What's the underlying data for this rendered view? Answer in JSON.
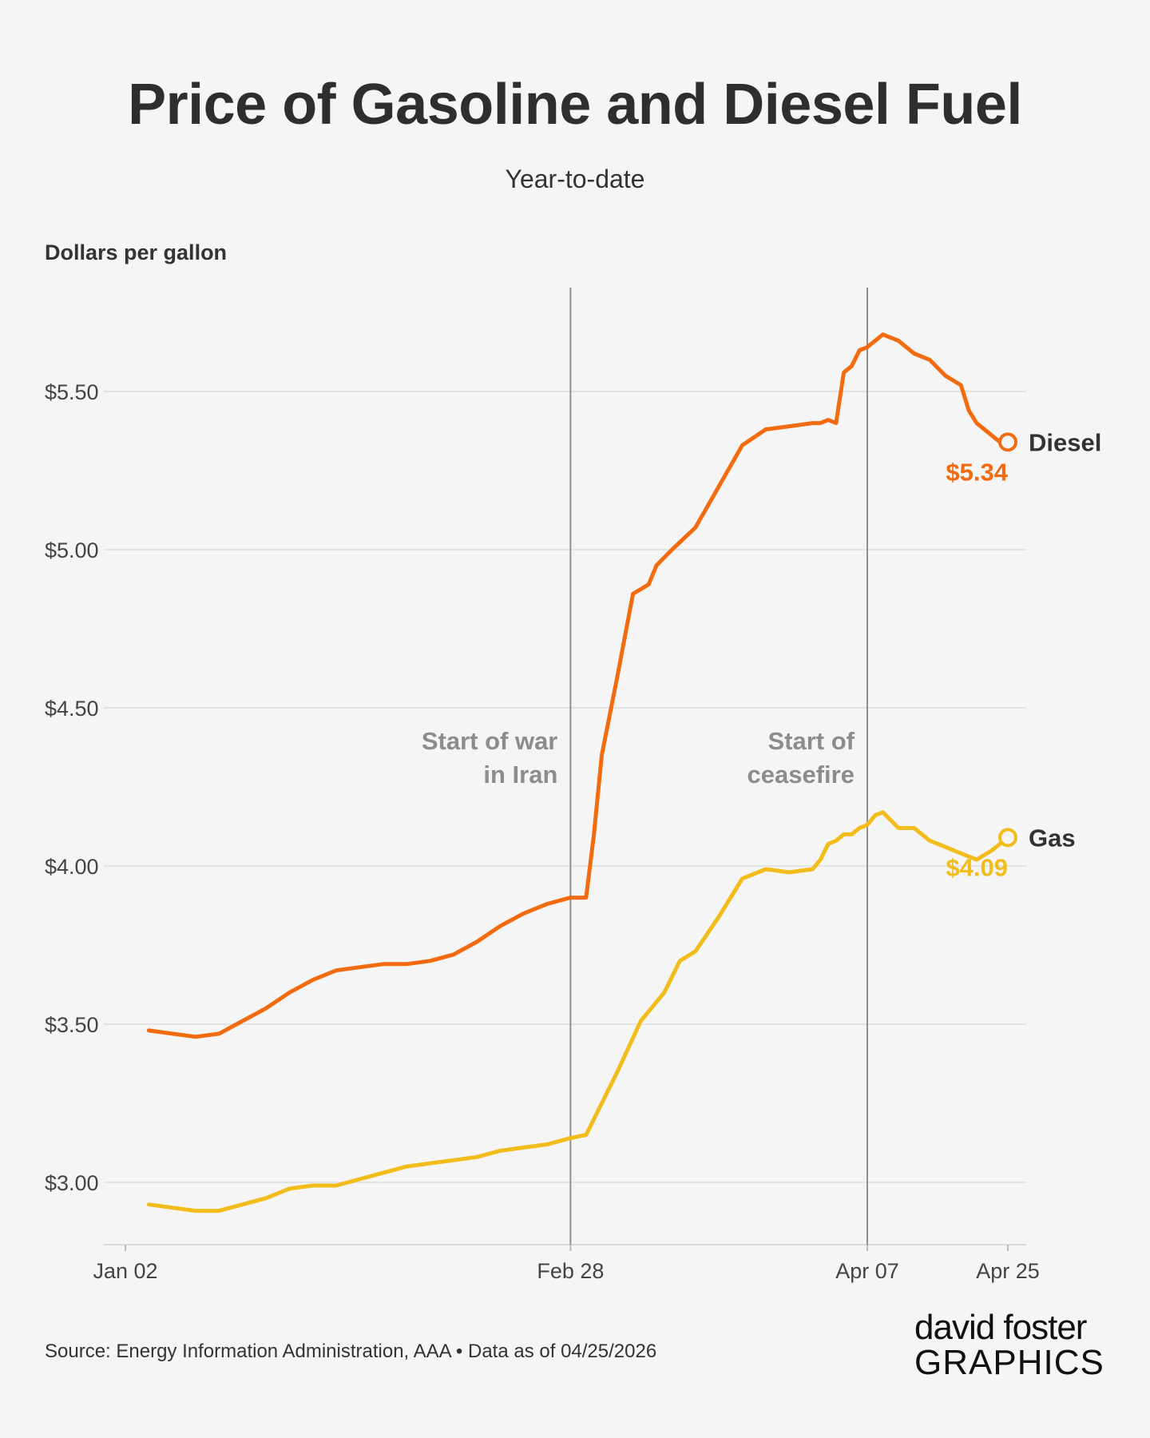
{
  "header": {
    "title": "Price of Gasoline and Diesel Fuel",
    "subtitle": "Year-to-date"
  },
  "footer": {
    "source": "Source: Energy Information Administration, AAA • Data as of 04/25/2026",
    "logo_line1": "david foster",
    "logo_line2": "GRAPHICS"
  },
  "colors": {
    "diesel": "#f26b0f",
    "gas": "#f2bc1a",
    "annotation": "#8c8c8c",
    "grid": "#e3e3e3",
    "logo_accent": "#1a8fe3"
  },
  "chart_data": {
    "type": "line",
    "ylabel": "Dollars per gallon",
    "ylim": [
      2.8,
      5.8
    ],
    "yticks": [
      3.0,
      3.5,
      4.0,
      4.5,
      5.0,
      5.5
    ],
    "ytick_labels": [
      "$3.00",
      "$3.50",
      "$4.00",
      "$4.50",
      "$5.00",
      "$5.50"
    ],
    "xlim": [
      "2026-01-01",
      "2026-04-26"
    ],
    "xticks": [
      "2026-01-02",
      "2026-02-28",
      "2026-04-07",
      "2026-04-25"
    ],
    "xtick_labels": [
      "Jan 02",
      "Feb 28",
      "Apr 07",
      "Apr 25"
    ],
    "grid": true,
    "annotations": [
      {
        "x": "2026-02-28",
        "lines": [
          "Start of war",
          "in Iran"
        ]
      },
      {
        "x": "2026-04-07",
        "lines": [
          "Start of",
          "ceasefire"
        ]
      }
    ],
    "series": [
      {
        "name": "Diesel",
        "end_label": "$5.34",
        "x": [
          "2026-01-05",
          "2026-01-08",
          "2026-01-11",
          "2026-01-14",
          "2026-01-17",
          "2026-01-20",
          "2026-01-23",
          "2026-01-26",
          "2026-01-29",
          "2026-02-01",
          "2026-02-04",
          "2026-02-07",
          "2026-02-10",
          "2026-02-13",
          "2026-02-16",
          "2026-02-19",
          "2026-02-22",
          "2026-02-25",
          "2026-02-28",
          "2026-03-02",
          "2026-03-03",
          "2026-03-04",
          "2026-03-06",
          "2026-03-08",
          "2026-03-10",
          "2026-03-11",
          "2026-03-13",
          "2026-03-16",
          "2026-03-19",
          "2026-03-22",
          "2026-03-25",
          "2026-03-28",
          "2026-03-31",
          "2026-04-01",
          "2026-04-02",
          "2026-04-03",
          "2026-04-04",
          "2026-04-05",
          "2026-04-06",
          "2026-04-07",
          "2026-04-09",
          "2026-04-11",
          "2026-04-13",
          "2026-04-15",
          "2026-04-17",
          "2026-04-19",
          "2026-04-20",
          "2026-04-21",
          "2026-04-22",
          "2026-04-23",
          "2026-04-24",
          "2026-04-25"
        ],
        "values": [
          3.48,
          3.47,
          3.46,
          3.47,
          3.51,
          3.55,
          3.6,
          3.64,
          3.67,
          3.68,
          3.69,
          3.69,
          3.7,
          3.72,
          3.76,
          3.81,
          3.85,
          3.88,
          3.9,
          3.9,
          4.1,
          4.35,
          4.6,
          4.86,
          4.89,
          4.95,
          5.0,
          5.07,
          5.2,
          5.33,
          5.38,
          5.39,
          5.4,
          5.4,
          5.41,
          5.4,
          5.56,
          5.58,
          5.63,
          5.64,
          5.68,
          5.66,
          5.62,
          5.6,
          5.55,
          5.52,
          5.44,
          5.4,
          5.38,
          5.36,
          5.34,
          5.34
        ]
      },
      {
        "name": "Gas",
        "end_label": "$4.09",
        "x": [
          "2026-01-05",
          "2026-01-08",
          "2026-01-11",
          "2026-01-14",
          "2026-01-17",
          "2026-01-20",
          "2026-01-23",
          "2026-01-26",
          "2026-01-29",
          "2026-02-01",
          "2026-02-04",
          "2026-02-07",
          "2026-02-10",
          "2026-02-13",
          "2026-02-16",
          "2026-02-19",
          "2026-02-22",
          "2026-02-25",
          "2026-02-28",
          "2026-03-02",
          "2026-03-04",
          "2026-03-06",
          "2026-03-09",
          "2026-03-12",
          "2026-03-14",
          "2026-03-16",
          "2026-03-19",
          "2026-03-22",
          "2026-03-25",
          "2026-03-28",
          "2026-03-31",
          "2026-04-01",
          "2026-04-02",
          "2026-04-03",
          "2026-04-04",
          "2026-04-05",
          "2026-04-06",
          "2026-04-07",
          "2026-04-08",
          "2026-04-09",
          "2026-04-11",
          "2026-04-13",
          "2026-04-15",
          "2026-04-17",
          "2026-04-19",
          "2026-04-21",
          "2026-04-23",
          "2026-04-24",
          "2026-04-25"
        ],
        "values": [
          2.93,
          2.92,
          2.91,
          2.91,
          2.93,
          2.95,
          2.98,
          2.99,
          2.99,
          3.01,
          3.03,
          3.05,
          3.06,
          3.07,
          3.08,
          3.1,
          3.11,
          3.12,
          3.14,
          3.15,
          3.25,
          3.35,
          3.51,
          3.6,
          3.7,
          3.73,
          3.84,
          3.96,
          3.99,
          3.98,
          3.99,
          4.02,
          4.07,
          4.08,
          4.1,
          4.1,
          4.12,
          4.13,
          4.16,
          4.17,
          4.12,
          4.12,
          4.08,
          4.06,
          4.04,
          4.02,
          4.05,
          4.07,
          4.09
        ]
      }
    ]
  }
}
